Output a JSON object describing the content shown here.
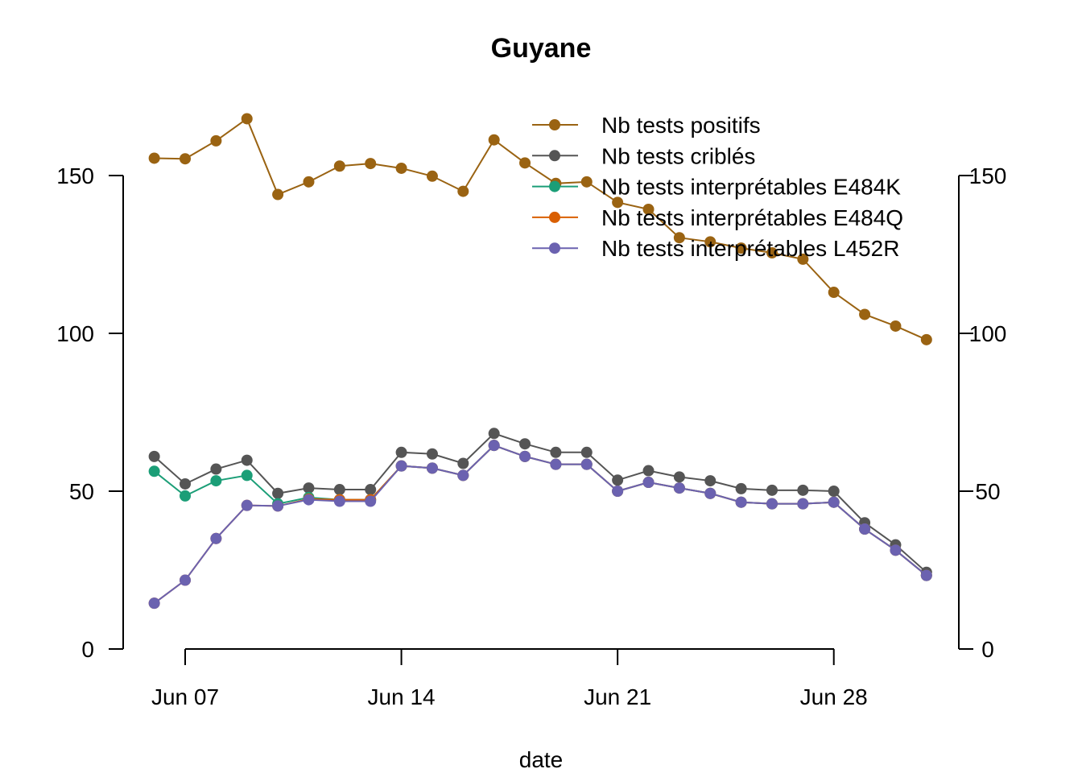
{
  "chart_data": {
    "type": "line",
    "title": "Guyane",
    "xlabel": "date",
    "ylabel": "",
    "ylim": [
      0,
      150
    ],
    "y_ticks": [
      0,
      50,
      100,
      150
    ],
    "x_tick_labels": [
      "Jun 07",
      "Jun 14",
      "Jun 21",
      "Jun 28"
    ],
    "x_tick_days": [
      7,
      14,
      21,
      28
    ],
    "x": [
      "Jun 06",
      "Jun 07",
      "Jun 08",
      "Jun 09",
      "Jun 10",
      "Jun 11",
      "Jun 12",
      "Jun 13",
      "Jun 14",
      "Jun 15",
      "Jun 16",
      "Jun 17",
      "Jun 18",
      "Jun 19",
      "Jun 20",
      "Jun 21",
      "Jun 22",
      "Jun 23",
      "Jun 24",
      "Jun 25",
      "Jun 26",
      "Jun 27",
      "Jun 28",
      "Jun 29",
      "Jun 30",
      "Jul 01"
    ],
    "x_days": [
      6,
      7,
      8,
      9,
      10,
      11,
      12,
      13,
      14,
      15,
      16,
      17,
      18,
      19,
      20,
      21,
      22,
      23,
      24,
      25,
      26,
      27,
      28,
      29,
      30,
      31
    ],
    "legend_position": "top-right",
    "series": [
      {
        "name": "Nb tests positifs",
        "color": "#9A6312",
        "values": [
          155.5,
          155.3,
          161,
          168,
          144,
          148,
          153,
          153.8,
          152.3,
          149.8,
          145,
          161.3,
          154,
          147.5,
          148,
          141.5,
          139.3,
          130.3,
          129,
          127,
          125.5,
          123.5,
          113,
          106,
          102.3,
          98
        ]
      },
      {
        "name": "Nb tests criblés",
        "color": "#555555",
        "values": [
          61,
          52.3,
          57,
          59.8,
          49.3,
          51,
          50.5,
          50.5,
          62.3,
          61.8,
          58.8,
          68.3,
          65,
          62.3,
          62.3,
          53.5,
          56.5,
          54.5,
          53.3,
          50.8,
          50.3,
          50.3,
          50,
          40,
          33,
          24.3
        ]
      },
      {
        "name": "Nb tests interprétables E484K",
        "color": "#1B9E77",
        "values": [
          56.3,
          48.5,
          53.3,
          55,
          46,
          48,
          47.3,
          47.3,
          58,
          57.3,
          55,
          64.5,
          61,
          58.5,
          58.5,
          50,
          52.8,
          51,
          49.3,
          46.5,
          46,
          46,
          46.5,
          38,
          31.3,
          23.3
        ]
      },
      {
        "name": "Nb tests interprétables E484Q",
        "color": "#D95F02",
        "values": [
          14.5,
          21.8,
          35,
          45.5,
          45.3,
          47.5,
          47.3,
          47.3,
          58,
          57.3,
          55,
          64.5,
          61,
          58.5,
          58.5,
          50,
          52.8,
          51,
          49.3,
          46.5,
          46,
          46,
          46.5,
          38,
          31.3,
          23.3
        ]
      },
      {
        "name": "Nb tests interprétables L452R",
        "color": "#6B62B0",
        "values": [
          14.5,
          21.8,
          35,
          45.5,
          45.3,
          47.3,
          46.8,
          46.8,
          58,
          57.3,
          55,
          64.5,
          61,
          58.5,
          58.5,
          50,
          52.8,
          51,
          49.3,
          46.5,
          46,
          46,
          46.5,
          38,
          31.3,
          23.3
        ]
      }
    ]
  }
}
